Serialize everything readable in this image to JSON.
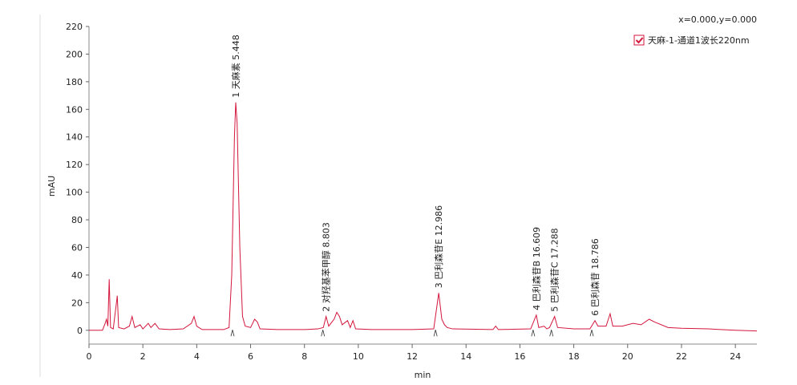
{
  "chart_data": {
    "type": "line",
    "coordinates": "x=0.000,y=0.000",
    "xlabel": "min",
    "ylabel": "mAU",
    "xlim": [
      0,
      24.8
    ],
    "ylim": [
      -10,
      220
    ],
    "xticks": [
      0,
      2,
      4,
      6,
      8,
      10,
      12,
      14,
      16,
      18,
      20,
      22,
      24
    ],
    "yticks": [
      0,
      20,
      40,
      60,
      80,
      100,
      120,
      140,
      160,
      180,
      200,
      220
    ],
    "legend": "top-right",
    "series": [
      {
        "name": "天麻-1-通道1波长220nm",
        "color": "#d4163c",
        "x": [
          0,
          0.5,
          0.6,
          0.65,
          0.7,
          0.75,
          0.8,
          0.9,
          1.05,
          1.1,
          1.3,
          1.5,
          1.6,
          1.7,
          1.9,
          2.0,
          2.2,
          2.3,
          2.45,
          2.6,
          3.0,
          3.5,
          3.8,
          3.9,
          4.0,
          4.2,
          5.0,
          5.2,
          5.3,
          5.4,
          5.448,
          5.5,
          5.6,
          5.7,
          5.8,
          6.0,
          6.15,
          6.25,
          6.35,
          7.0,
          8.0,
          8.5,
          8.7,
          8.803,
          8.9,
          9.1,
          9.2,
          9.3,
          9.4,
          9.6,
          9.7,
          9.8,
          9.9,
          10.5,
          12.0,
          12.8,
          12.986,
          13.1,
          13.2,
          13.3,
          13.5,
          15.0,
          15.1,
          15.2,
          16.4,
          16.609,
          16.7,
          16.9,
          17.0,
          17.1,
          17.288,
          17.4,
          18.0,
          18.6,
          18.786,
          18.9,
          19.2,
          19.35,
          19.45,
          19.8,
          20.2,
          20.5,
          20.8,
          21.0,
          21.5,
          22.0,
          23.0,
          24.0,
          24.8
        ],
        "y": [
          0,
          0,
          5,
          8,
          3,
          37,
          2,
          1,
          25,
          2,
          1,
          3,
          10,
          2,
          4,
          1,
          5,
          2,
          5,
          1,
          0.5,
          1,
          5,
          10,
          3,
          0.5,
          0.5,
          2,
          40,
          140,
          165,
          150,
          60,
          10,
          3,
          2,
          8,
          6,
          1,
          0.5,
          0.5,
          1,
          2,
          10,
          3,
          8,
          13,
          10,
          4,
          7,
          2,
          7,
          1,
          0.5,
          0.5,
          1,
          27,
          8,
          4,
          2,
          1,
          0.5,
          3,
          0.5,
          1,
          11,
          2,
          3,
          1,
          2,
          10,
          2,
          1,
          1,
          7,
          3,
          3,
          12,
          3,
          3,
          5,
          4,
          8,
          6,
          2,
          1.5,
          1,
          0,
          -0.5
        ]
      }
    ],
    "peaks": [
      {
        "label": "1 天麻素 5.448",
        "x": 5.448
      },
      {
        "label": "2 对羟基苯甲醇 8.803",
        "x": 8.803
      },
      {
        "label": "3 巴利森苷E 12.986",
        "x": 12.986
      },
      {
        "label": "4 巴利森苷B 16.609",
        "x": 16.609
      },
      {
        "label": "5 巴利森苷C 17.288",
        "x": 17.288
      },
      {
        "label": "6 巴利森苷 18.786",
        "x": 18.786
      }
    ]
  }
}
